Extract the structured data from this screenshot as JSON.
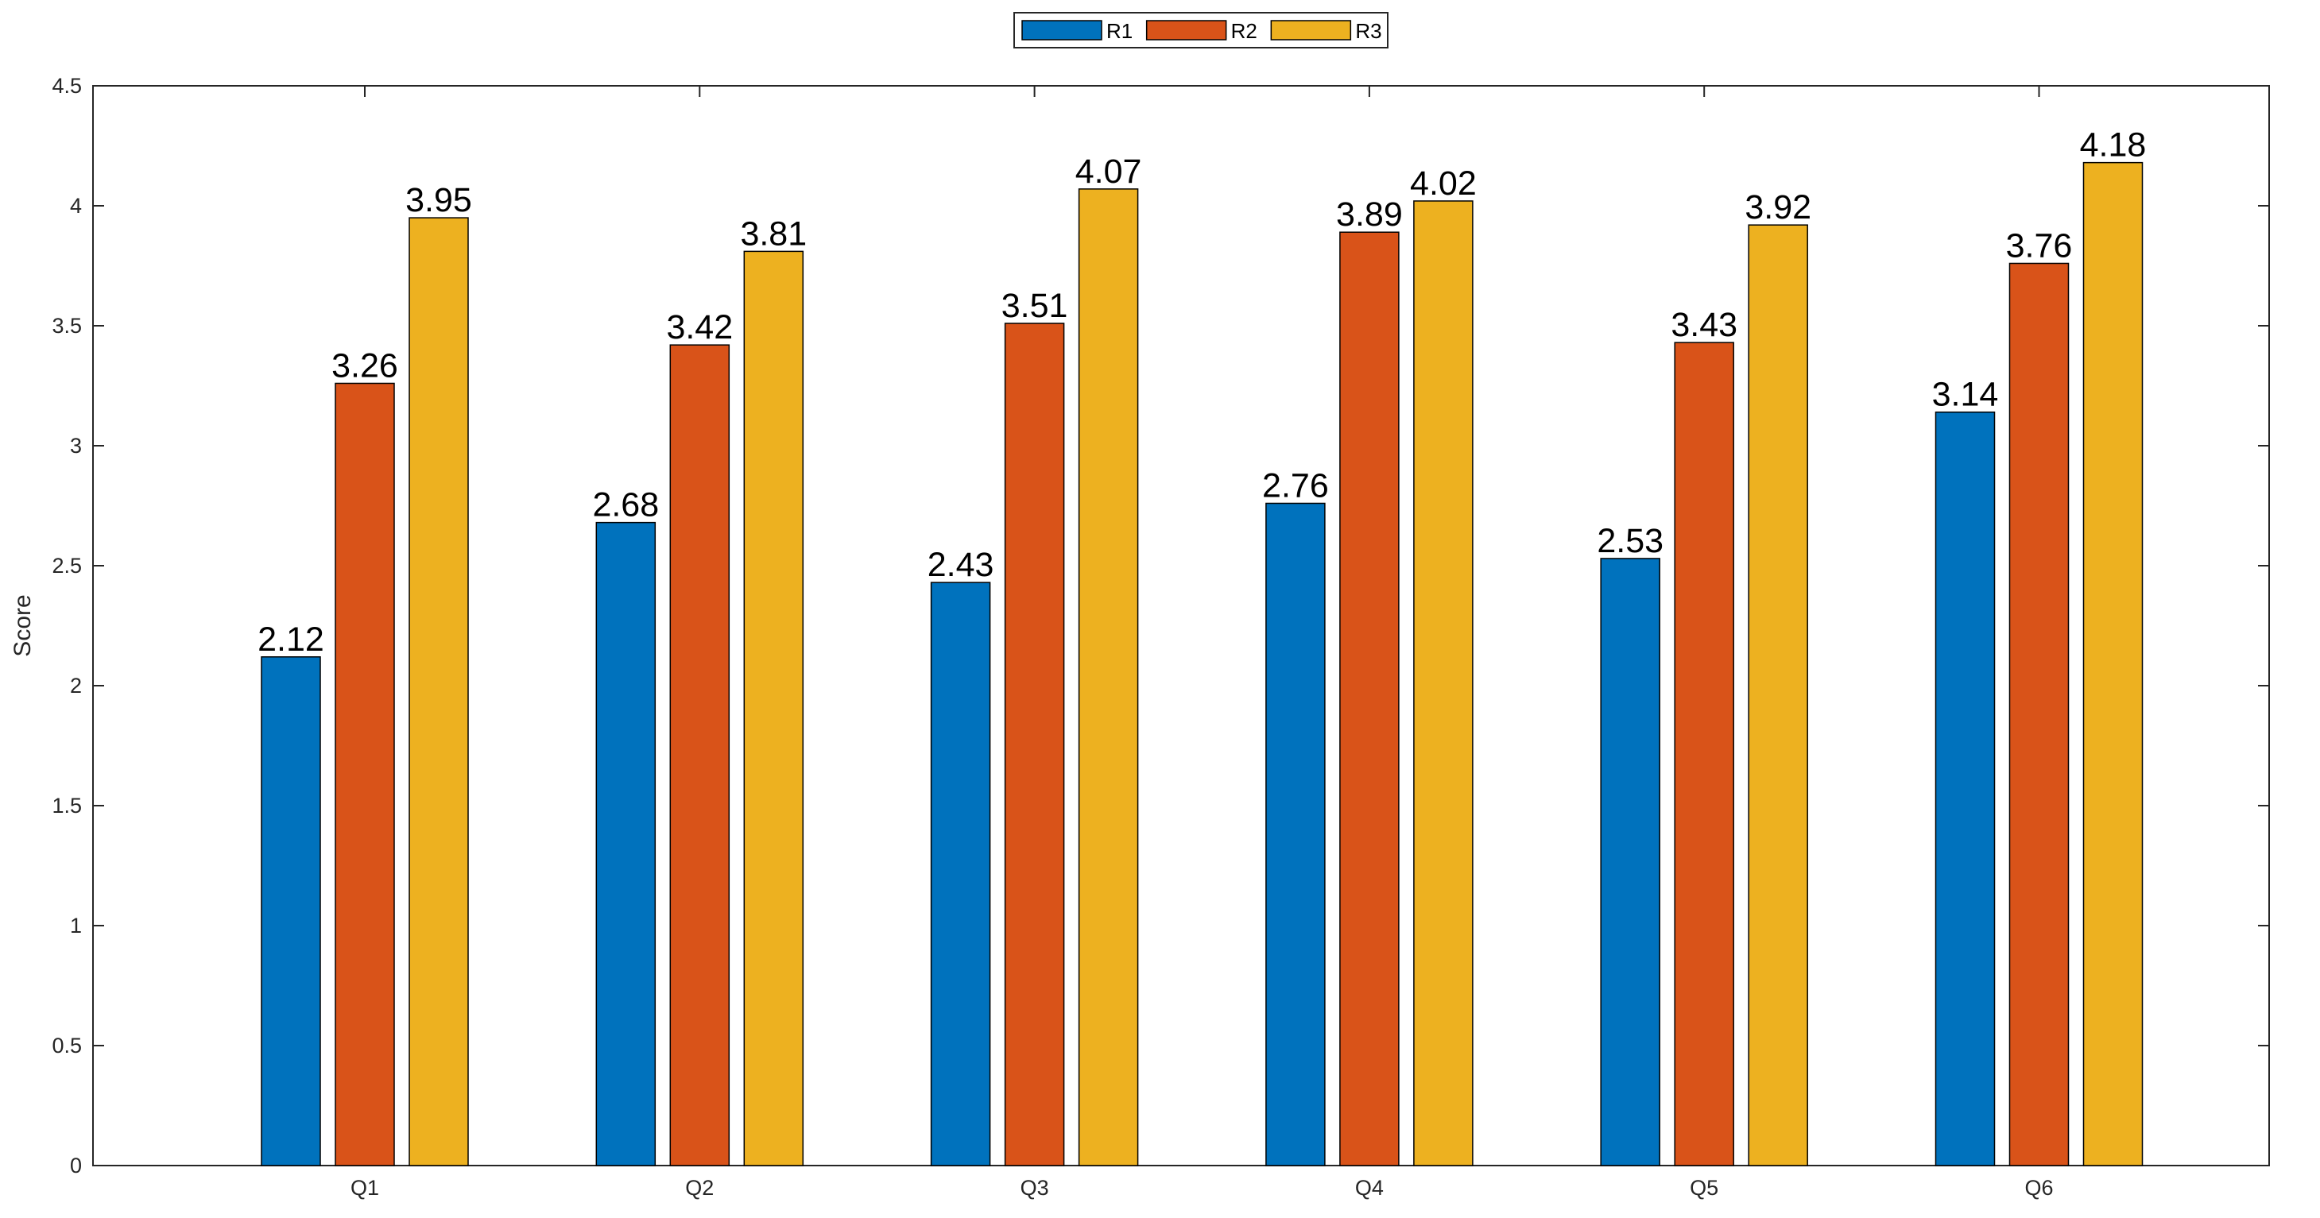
{
  "chart_data": {
    "type": "bar",
    "title": "",
    "xlabel": "",
    "ylabel": "Score",
    "ylim": [
      0,
      4.5
    ],
    "yticks": [
      0,
      0.5,
      1,
      1.5,
      2,
      2.5,
      3,
      3.5,
      4,
      4.5
    ],
    "ytick_labels": [
      "0",
      "0.5",
      "1",
      "1.5",
      "2",
      "2.5",
      "3",
      "3.5",
      "4",
      "4.5"
    ],
    "categories": [
      "Q1",
      "Q2",
      "Q3",
      "Q4",
      "Q5",
      "Q6"
    ],
    "series": [
      {
        "name": "R1",
        "color": "#0072BD",
        "values": [
          2.12,
          2.68,
          2.43,
          2.76,
          2.53,
          3.14
        ]
      },
      {
        "name": "R2",
        "color": "#D95319",
        "values": [
          3.26,
          3.42,
          3.51,
          3.89,
          3.43,
          3.76
        ]
      },
      {
        "name": "R3",
        "color": "#EDB120",
        "values": [
          3.95,
          3.81,
          4.07,
          4.02,
          3.92,
          4.18
        ]
      }
    ],
    "legend_position": "top-center",
    "grid": false
  }
}
